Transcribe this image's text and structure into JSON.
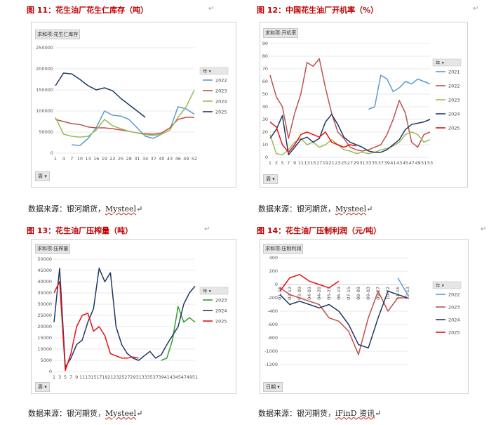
{
  "chart_data": [
    {
      "type": "line",
      "figure_title": "图 11：花生油厂花生仁库存（吨）",
      "pivot_label": "求和项:花生仁库存",
      "axis_button": "周",
      "legend_title": "年",
      "source": {
        "prefix": "数据来源：银河期货，",
        "brand": "Mysteel"
      },
      "x_ticks": [
        "1",
        "4",
        "7",
        "10",
        "13",
        "16",
        "19",
        "22",
        "25",
        "28",
        "31",
        "34",
        "37",
        "40",
        "43",
        "46",
        "49",
        "52"
      ],
      "x": [
        1,
        4,
        7,
        10,
        13,
        16,
        19,
        22,
        25,
        28,
        31,
        34,
        37,
        40,
        43,
        46,
        49,
        52
      ],
      "ylim": [
        0,
        250000
      ],
      "y_ticks": [
        0,
        50000,
        100000,
        150000,
        200000,
        250000
      ],
      "series": [
        {
          "name": "2022",
          "color": "#5b9bd5",
          "values": [
            null,
            null,
            20000,
            18000,
            35000,
            60000,
            100000,
            90000,
            88000,
            80000,
            60000,
            40000,
            35000,
            45000,
            55000,
            110000,
            105000,
            92000
          ]
        },
        {
          "name": "2023",
          "color": "#c0504d",
          "values": [
            80000,
            75000,
            70000,
            68000,
            62000,
            60000,
            60000,
            58000,
            55000,
            52000,
            48000,
            46000,
            45000,
            48000,
            60000,
            80000,
            85000,
            85000
          ]
        },
        {
          "name": "2024",
          "color": "#9bbb59",
          "values": [
            85000,
            45000,
            40000,
            38000,
            40000,
            55000,
            80000,
            65000,
            58000,
            52000,
            48000,
            44000,
            42000,
            45000,
            55000,
            85000,
            110000,
            150000
          ]
        },
        {
          "name": "2025",
          "color": "#1f3864",
          "values": [
            160000,
            190000,
            188000,
            175000,
            160000,
            150000,
            155000,
            148000,
            130000,
            115000,
            100000,
            85000,
            null,
            null,
            null,
            null,
            null,
            null
          ]
        }
      ]
    },
    {
      "type": "line",
      "figure_title": "图 12：中国花生油厂开机率（%）",
      "pivot_label": "求和项:开机率",
      "axis_button": "周",
      "legend_title": "年",
      "source": {
        "prefix": "数据来源：银河期货，",
        "brand": "Mysteel"
      },
      "x_ticks": [
        "1",
        "3",
        "5",
        "7",
        "9",
        "11",
        "13",
        "15",
        "17",
        "19",
        "21",
        "23",
        "25",
        "27",
        "29",
        "31",
        "33",
        "35",
        "37",
        "39",
        "41",
        "43",
        "45",
        "47",
        "49",
        "51",
        "53"
      ],
      "x": [
        1,
        3,
        5,
        7,
        9,
        11,
        13,
        15,
        17,
        19,
        21,
        23,
        25,
        27,
        29,
        31,
        33,
        35,
        37,
        39,
        41,
        43,
        45,
        47,
        49,
        51,
        53
      ],
      "ylim": [
        0,
        90
      ],
      "y_ticks": [
        0,
        10,
        20,
        30,
        40,
        50,
        60,
        70,
        80,
        90
      ],
      "series": [
        {
          "name": "2021",
          "color": "#5b9bd5",
          "values": [
            null,
            null,
            null,
            null,
            null,
            null,
            null,
            null,
            null,
            null,
            null,
            null,
            null,
            null,
            null,
            null,
            38,
            40,
            65,
            62,
            52,
            55,
            60,
            58,
            62,
            60,
            58
          ]
        },
        {
          "name": "2022",
          "color": "#c0504d",
          "values": [
            65,
            48,
            40,
            15,
            35,
            50,
            75,
            72,
            78,
            55,
            35,
            20,
            15,
            8,
            6,
            5,
            6,
            8,
            10,
            18,
            30,
            45,
            35,
            12,
            8,
            18,
            20
          ]
        },
        {
          "name": "2023",
          "color": "#9bbb59",
          "values": [
            18,
            3,
            2,
            6,
            12,
            15,
            10,
            12,
            8,
            10,
            14,
            10,
            6,
            5,
            3,
            4,
            3,
            4,
            6,
            7,
            9,
            12,
            18,
            20,
            18,
            12,
            14
          ]
        },
        {
          "name": "2024",
          "color": "#1f3864",
          "values": [
            15,
            22,
            33,
            2,
            8,
            14,
            16,
            12,
            15,
            28,
            34,
            26,
            16,
            12,
            10,
            8,
            5,
            4,
            4,
            6,
            10,
            14,
            22,
            26,
            27,
            28,
            30
          ]
        },
        {
          "name": "2025",
          "color": "#e81010",
          "values": [
            28,
            24,
            10,
            4,
            10,
            18,
            20,
            18,
            16,
            20,
            12,
            10,
            8,
            10,
            9,
            null,
            null,
            null,
            null,
            null,
            null,
            null,
            null,
            null,
            null,
            null,
            null
          ]
        }
      ]
    },
    {
      "type": "line",
      "figure_title": "图 13：花生油厂压榨量（吨）",
      "pivot_label": "求和项:压榨量",
      "axis_button": "周",
      "legend_title": "年",
      "source": {
        "prefix": "数据来源：银河期货，",
        "brand": "Mysteel"
      },
      "x_ticks": [
        "1",
        "3",
        "5",
        "7",
        "9",
        "11",
        "13",
        "15",
        "17",
        "19",
        "21",
        "23",
        "25",
        "27",
        "29",
        "31",
        "33",
        "35",
        "37",
        "39",
        "41",
        "43",
        "45",
        "47",
        "49",
        "51"
      ],
      "x": [
        1,
        3,
        5,
        7,
        9,
        11,
        13,
        15,
        17,
        19,
        21,
        23,
        25,
        27,
        29,
        31,
        33,
        35,
        37,
        39,
        41,
        43,
        45,
        47,
        49,
        51
      ],
      "ylim": [
        0,
        50000
      ],
      "y_ticks": [
        0,
        5000,
        10000,
        15000,
        20000,
        25000,
        30000,
        35000,
        40000,
        45000,
        50000
      ],
      "series": [
        {
          "name": "2023",
          "color": "#2ca02c",
          "values": [
            null,
            null,
            null,
            null,
            null,
            null,
            null,
            null,
            null,
            null,
            null,
            null,
            null,
            null,
            null,
            null,
            null,
            null,
            null,
            5000,
            6000,
            14000,
            29000,
            22000,
            24000,
            22000
          ]
        },
        {
          "name": "2024",
          "color": "#1f3864",
          "values": [
            22000,
            46000,
            2000,
            6000,
            12000,
            14000,
            22000,
            28000,
            46000,
            40000,
            44000,
            20000,
            12000,
            8000,
            6000,
            5000,
            7000,
            9000,
            6000,
            7500,
            12000,
            16000,
            20000,
            30000,
            35000,
            38000
          ]
        },
        {
          "name": "2025",
          "color": "#e81010",
          "values": [
            35000,
            40000,
            500,
            8000,
            20000,
            25000,
            26000,
            18000,
            20000,
            16000,
            8000,
            7000,
            6000,
            6000,
            6500,
            6000,
            null,
            null,
            null,
            null,
            null,
            null,
            null,
            null,
            null,
            null
          ]
        }
      ]
    },
    {
      "type": "line",
      "figure_title": "图 14：花生油厂压制利润（元/吨）",
      "pivot_label": "求和项:压制利润",
      "axis_button": "日期",
      "legend_title": "年",
      "source": {
        "prefix": "数据来源：银河期货，",
        "brand": "iFinD 资讯"
      },
      "x_ticks": [
        "01-16",
        "02-12",
        "03-09",
        "04-03",
        "04-28",
        "05-23",
        "06-19",
        "07-15",
        "08-09",
        "09-03",
        "09-27",
        "10-22",
        "11-16",
        "12-13"
      ],
      "x": [
        0,
        1,
        2,
        3,
        4,
        5,
        6,
        7,
        8,
        9,
        10,
        11,
        12,
        13
      ],
      "ylim": [
        -1200,
        400
      ],
      "y_ticks": [
        -1200,
        -1000,
        -800,
        -600,
        -400,
        -200,
        0,
        200,
        400
      ],
      "series": [
        {
          "name": "2022",
          "color": "#5b9bd5",
          "values": [
            null,
            null,
            null,
            null,
            null,
            null,
            null,
            null,
            null,
            null,
            null,
            null,
            100,
            -150
          ]
        },
        {
          "name": "2023",
          "color": "#c0504d",
          "values": [
            -50,
            -150,
            -200,
            -250,
            -300,
            -500,
            -550,
            -700,
            -1050,
            -500,
            -100,
            -400,
            -200,
            -200
          ]
        },
        {
          "name": "2024",
          "color": "#1f3864",
          "values": [
            -150,
            -300,
            -250,
            -300,
            -350,
            -300,
            -400,
            -600,
            -900,
            -950,
            -500,
            -100,
            -150,
            -200
          ]
        },
        {
          "name": "2025",
          "color": "#e81010",
          "values": [
            -100,
            100,
            150,
            50,
            0,
            -50,
            50,
            null,
            null,
            null,
            null,
            null,
            null,
            null
          ]
        }
      ]
    }
  ],
  "return_mark": "↵"
}
